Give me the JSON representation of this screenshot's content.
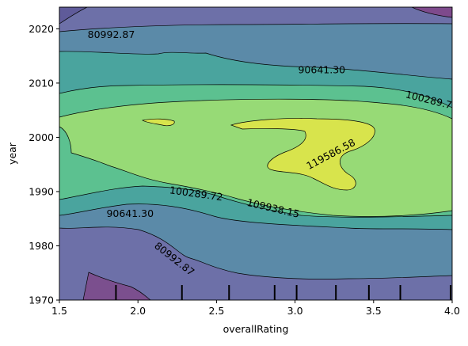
{
  "chart_data": {
    "type": "contour",
    "xlabel": "overallRating",
    "ylabel": "year",
    "xlim": [
      1.5,
      4.0
    ],
    "ylim": [
      1970,
      2024
    ],
    "x_ticks": [
      1.5,
      2.0,
      2.5,
      3.0,
      3.5,
      4.0
    ],
    "y_ticks": [
      1970,
      1980,
      1990,
      2000,
      2010,
      2020
    ],
    "x_tick_labels": [
      "1.5",
      "2.0",
      "2.5",
      "3.0",
      "3.5",
      "4.0"
    ],
    "y_tick_labels": [
      "1970",
      "1980",
      "1990",
      "2000",
      "2010",
      "2020"
    ],
    "contour_levels": [
      71345,
      80992.87,
      90641.3,
      100289.72,
      109938.15,
      119586.58
    ],
    "contour_labels": [
      {
        "text": "80992.87",
        "x": 1.83,
        "y": 2018.8,
        "angle": 0
      },
      {
        "text": "90641.30",
        "x": 3.17,
        "y": 2012.3,
        "angle": 0
      },
      {
        "text": "100289.7",
        "x": 3.85,
        "y": 2006.8,
        "angle": 14
      },
      {
        "text": "119586.58",
        "x": 3.23,
        "y": 1996.8,
        "angle": -28
      },
      {
        "text": "100289.72",
        "x": 2.37,
        "y": 1989.5,
        "angle": 8
      },
      {
        "text": "109938.15",
        "x": 2.86,
        "y": 1986.8,
        "angle": 13
      },
      {
        "text": "90641.30",
        "x": 1.95,
        "y": 1985.8,
        "angle": 0
      },
      {
        "text": "80992.87",
        "x": 2.23,
        "y": 1977.5,
        "angle": 38
      }
    ],
    "rug_x": [
      1.86,
      2.28,
      2.58,
      2.87,
      3.01,
      3.26,
      3.47,
      3.67,
      3.99
    ],
    "colormap": "viridis",
    "grid": false
  }
}
